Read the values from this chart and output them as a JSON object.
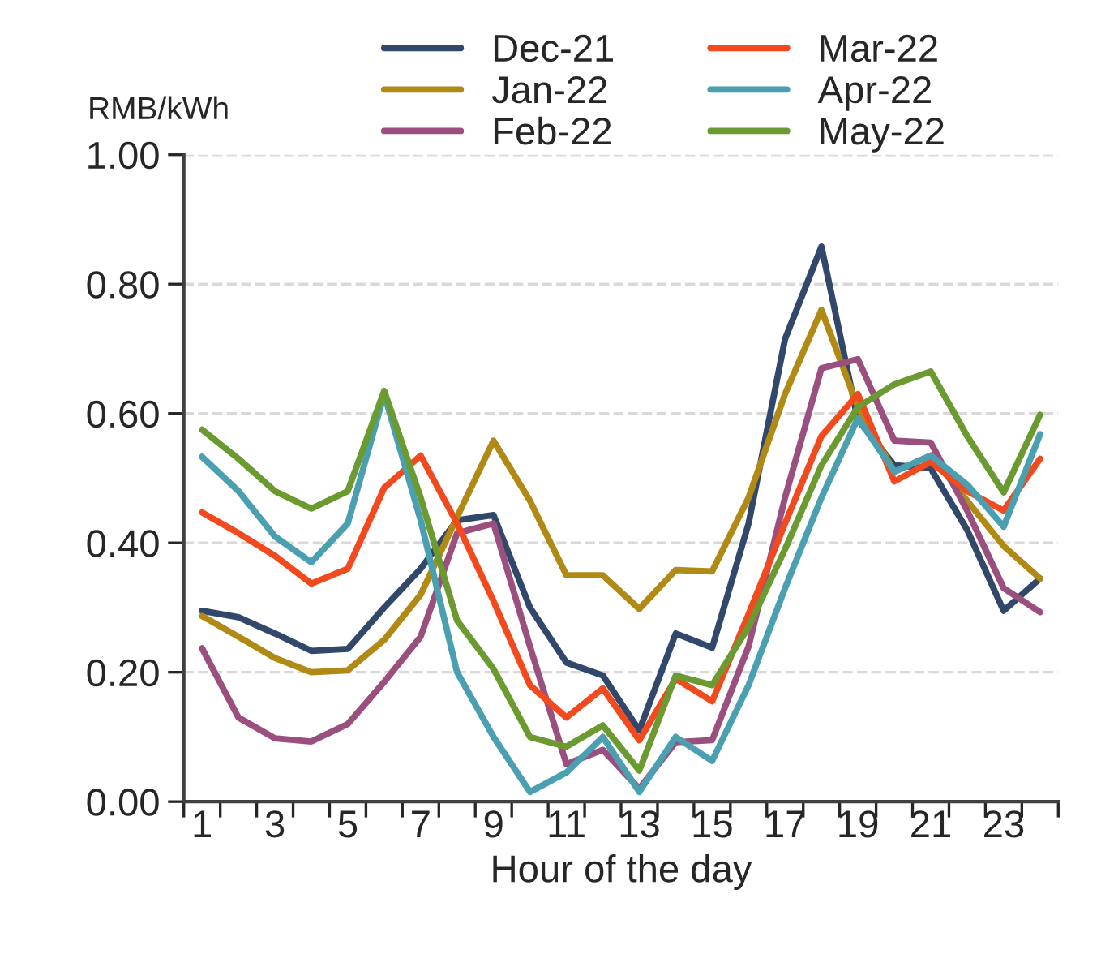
{
  "chart_data": {
    "type": "line",
    "xlabel": "Hour of the day",
    "ylabel": "RMB/kWh",
    "categories": [
      "1",
      null,
      "3",
      null,
      "5",
      null,
      "7",
      null,
      "9",
      null,
      "11",
      null,
      "13",
      null,
      "15",
      null,
      "17",
      null,
      "19",
      null,
      "21",
      null,
      "23",
      null
    ],
    "ylim": [
      0,
      1
    ],
    "yticks": [
      {
        "value": 0,
        "label": "0.00"
      },
      {
        "value": 0.2,
        "label": "0.20"
      },
      {
        "value": 0.4,
        "label": "0.40"
      },
      {
        "value": 0.6,
        "label": "0.60"
      },
      {
        "value": 0.8,
        "label": "0.80"
      },
      {
        "value": 1,
        "label": "1.00"
      }
    ],
    "grid": "y",
    "legend": "top",
    "marker": "none",
    "line_style": "solid",
    "series": [
      {
        "name": "Dec-21",
        "color": "#31486b",
        "values": [
          0.295,
          0.285,
          0.26,
          0.233,
          0.236,
          0.3,
          0.36,
          0.435,
          0.443,
          0.3,
          0.215,
          0.195,
          0.11,
          0.26,
          0.238,
          0.43,
          0.715,
          0.858,
          0.59,
          0.52,
          0.515,
          0.42,
          0.295,
          0.345
        ]
      },
      {
        "name": "Jan-22",
        "color": "#b08a14",
        "values": [
          0.287,
          0.255,
          0.222,
          0.2,
          0.203,
          0.25,
          0.32,
          0.44,
          0.558,
          0.465,
          0.35,
          0.35,
          0.298,
          0.358,
          0.356,
          0.47,
          0.63,
          0.76,
          0.61,
          0.51,
          0.535,
          0.465,
          0.395,
          0.345
        ]
      },
      {
        "name": "Feb-22",
        "color": "#9a4f7e",
        "values": [
          0.237,
          0.13,
          0.098,
          0.093,
          0.12,
          0.185,
          0.255,
          0.415,
          0.43,
          0.24,
          0.058,
          0.08,
          0.02,
          0.092,
          0.095,
          0.24,
          0.47,
          0.67,
          0.684,
          0.558,
          0.555,
          0.45,
          0.33,
          0.293
        ]
      },
      {
        "name": "Mar-22",
        "color": "#f24a1e",
        "values": [
          0.447,
          0.415,
          0.38,
          0.337,
          0.36,
          0.485,
          0.535,
          0.43,
          0.31,
          0.18,
          0.13,
          0.175,
          0.095,
          0.19,
          0.155,
          0.29,
          0.43,
          0.565,
          0.63,
          0.495,
          0.525,
          0.48,
          0.45,
          0.53
        ]
      },
      {
        "name": "Apr-22",
        "color": "#4aa0b0",
        "values": [
          0.533,
          0.48,
          0.41,
          0.37,
          0.43,
          0.63,
          0.435,
          0.2,
          0.1,
          0.015,
          0.045,
          0.1,
          0.015,
          0.1,
          0.063,
          0.18,
          0.33,
          0.47,
          0.593,
          0.51,
          0.535,
          0.49,
          0.425,
          0.568
        ]
      },
      {
        "name": "May-22",
        "color": "#6a9a30",
        "values": [
          0.575,
          0.53,
          0.48,
          0.453,
          0.48,
          0.635,
          0.47,
          0.28,
          0.205,
          0.1,
          0.085,
          0.118,
          0.048,
          0.195,
          0.18,
          0.27,
          0.39,
          0.52,
          0.61,
          0.645,
          0.665,
          0.565,
          0.478,
          0.598
        ]
      }
    ]
  }
}
